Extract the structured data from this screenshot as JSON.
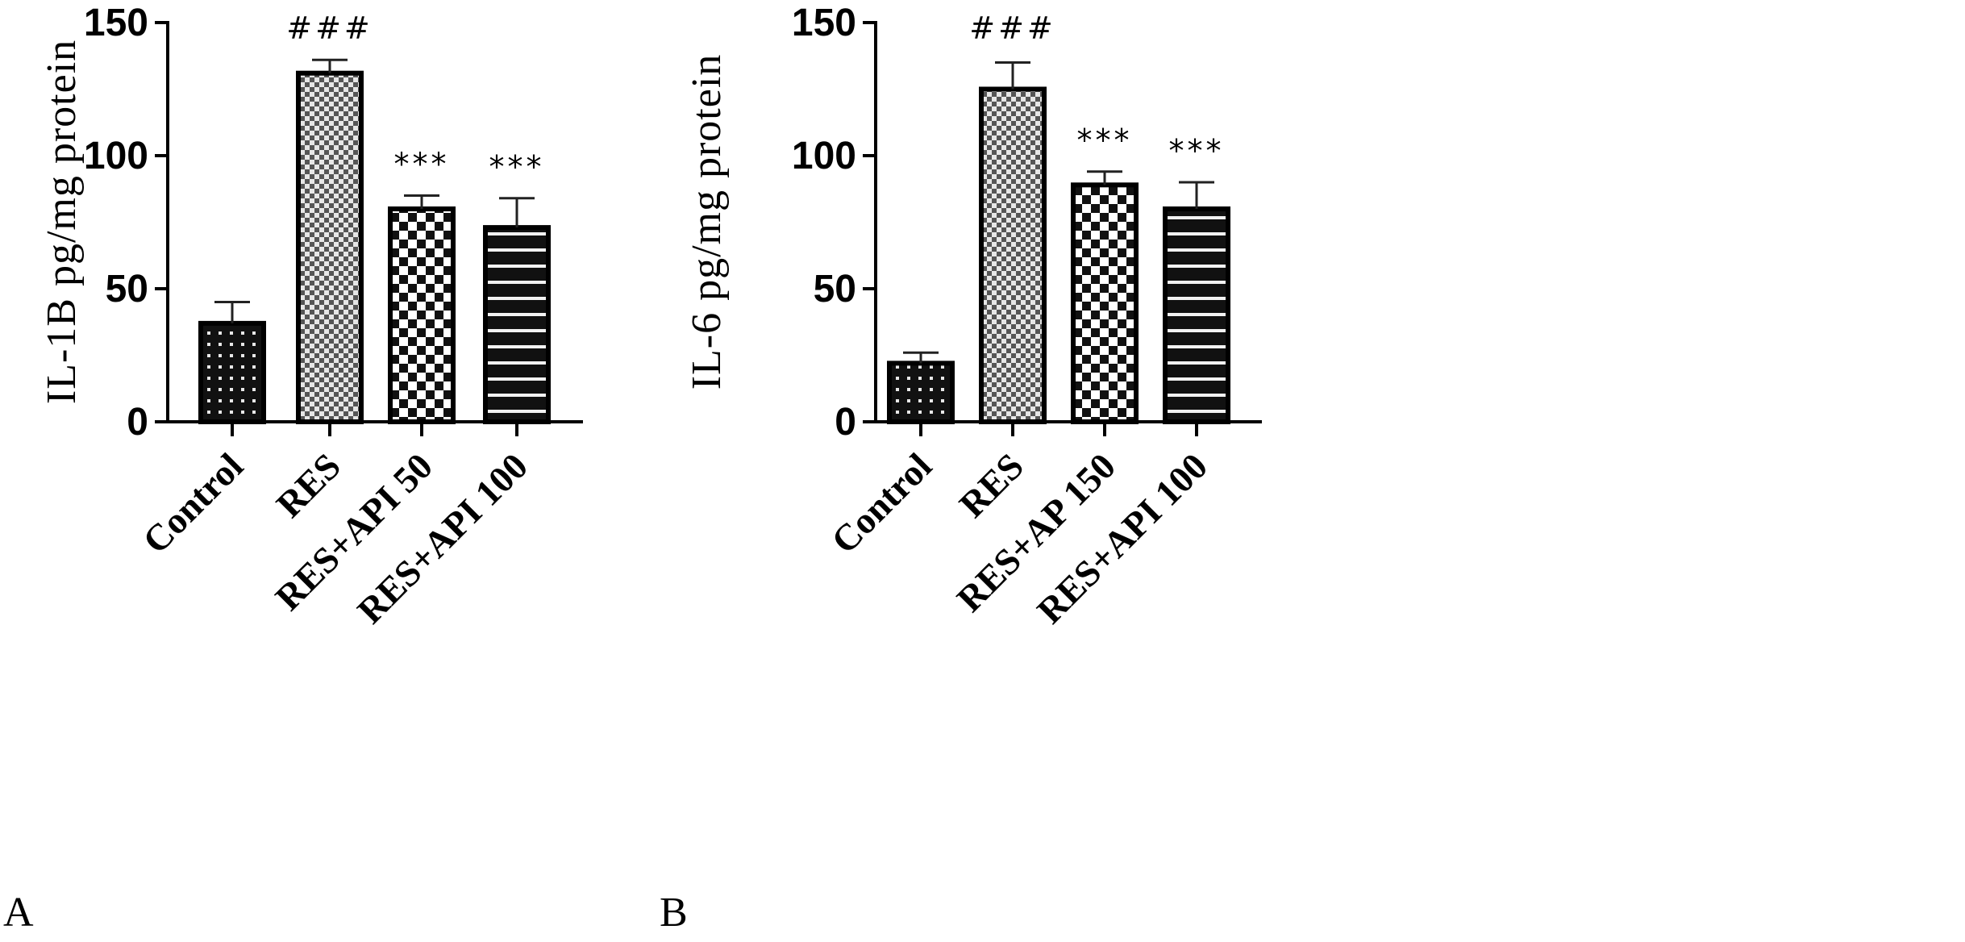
{
  "chart_data": [
    {
      "type": "bar",
      "panel_label": "A",
      "ylabel": "IL-1B pg/mg protein",
      "ylim": [
        0,
        150
      ],
      "yticks": [
        0,
        50,
        100,
        150
      ],
      "categories": [
        "Control",
        "RES",
        "RES+API 50",
        "RES+API 100"
      ],
      "values": [
        37,
        131,
        80,
        73
      ],
      "errors": [
        8,
        5,
        5,
        11
      ],
      "annotations": [
        "",
        "###",
        "***",
        "***"
      ],
      "patterns": [
        "dots",
        "fine-check",
        "check",
        "stripes"
      ]
    },
    {
      "type": "bar",
      "panel_label": "B",
      "ylabel": "IL-6 pg/mg protein",
      "ylim": [
        0,
        150
      ],
      "yticks": [
        0,
        50,
        100,
        150
      ],
      "categories": [
        "Control",
        "RES",
        "RES+AP 150",
        "RES+API 100"
      ],
      "values": [
        22,
        125,
        89,
        80
      ],
      "errors": [
        4,
        10,
        5,
        10
      ],
      "annotations": [
        "",
        "###",
        "***",
        "***"
      ],
      "patterns": [
        "dots",
        "fine-check",
        "check",
        "stripes"
      ]
    }
  ]
}
